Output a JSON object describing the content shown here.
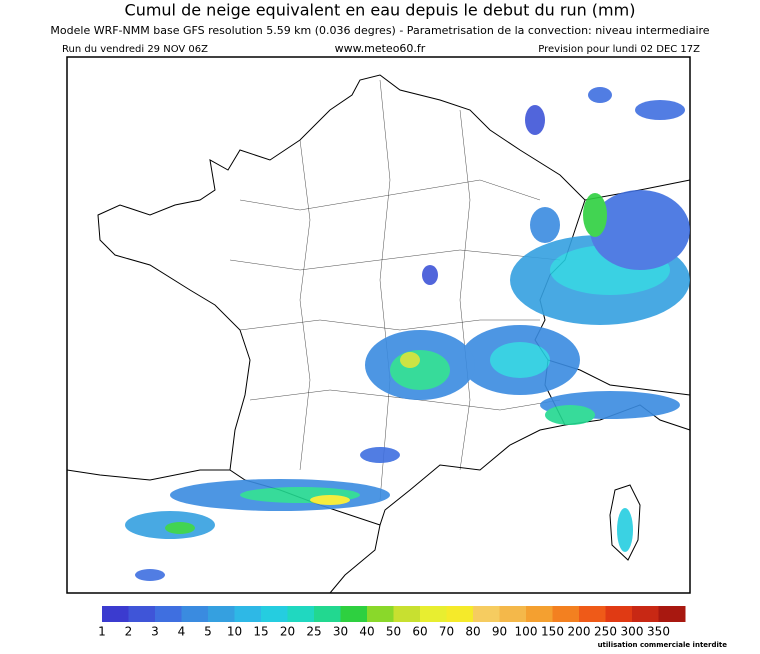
{
  "header": {
    "title": "Cumul de neige equivalent en eau depuis le debut du run (mm)",
    "subtitle": "Modele WRF-NMM base GFS resolution 5.59 km (0.036 degres) - Parametrisation de la convection: niveau intermediaire",
    "run": "Run du vendredi 29 NOV 06Z",
    "site": "www.meteo60.fr",
    "forecast": "Prevision pour lundi 02 DEC 17Z"
  },
  "legend": {
    "levels": [
      1,
      2,
      3,
      4,
      5,
      10,
      15,
      20,
      25,
      30,
      40,
      50,
      60,
      70,
      80,
      90,
      100,
      150,
      200,
      250,
      300,
      350
    ],
    "colors": [
      "#3b3bcf",
      "#3f55d8",
      "#3f6fe0",
      "#3a8be0",
      "#35a0e0",
      "#2eb8e6",
      "#25cde0",
      "#20d8c0",
      "#22d890",
      "#2ed040",
      "#8ad82a",
      "#c8e030",
      "#e8ee30",
      "#f5ea2a",
      "#f6cc60",
      "#f4b84a",
      "#f4a030",
      "#f38020",
      "#ef5a18",
      "#e03a14",
      "#c82814",
      "#a81810"
    ]
  },
  "footer": {
    "note": "utilisation commerciale interdite"
  }
}
